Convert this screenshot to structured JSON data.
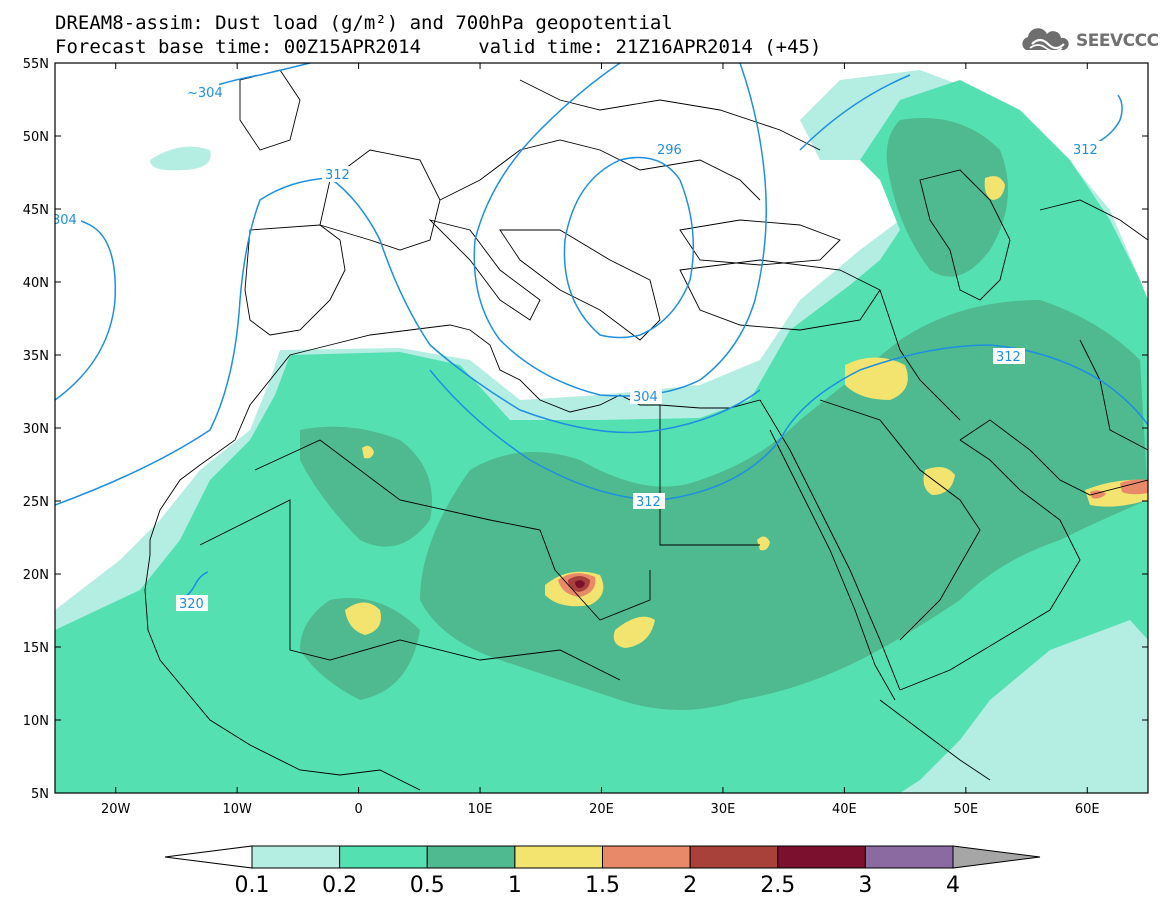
{
  "title": {
    "line1": "DREAM8-assim: Dust load (g/m²) and 700hPa geopotential",
    "line2": "Forecast base time: 00Z15APR2014     valid time: 21Z16APR2014 (+45)"
  },
  "logo": {
    "text": "SEEVCCC",
    "icon": "cloud-logo-icon"
  },
  "map": {
    "lon_range": [
      -25,
      65
    ],
    "lat_range": [
      5,
      55
    ],
    "lat_labels": [
      "55N",
      "50N",
      "45N",
      "40N",
      "35N",
      "30N",
      "25N",
      "20N",
      "15N",
      "10N",
      "5N"
    ],
    "lon_labels": [
      "20W",
      "10W",
      "0",
      "10E",
      "20E",
      "30E",
      "40E",
      "50E",
      "60E"
    ],
    "contour_labels": [
      "304",
      "304",
      "312",
      "296",
      "312",
      "304",
      "312",
      "312",
      "320"
    ]
  },
  "colorbar": {
    "labels": [
      "0.1",
      "0.2",
      "0.5",
      "1",
      "1.5",
      "2",
      "2.5",
      "3",
      "4"
    ],
    "colors": [
      "#ffffff",
      "#b4ede2",
      "#55e0b2",
      "#4fb990",
      "#f2e46e",
      "#e8896a",
      "#a8413a",
      "#7a0f2e",
      "#8a6aa0",
      "#a6a6a6"
    ]
  }
}
